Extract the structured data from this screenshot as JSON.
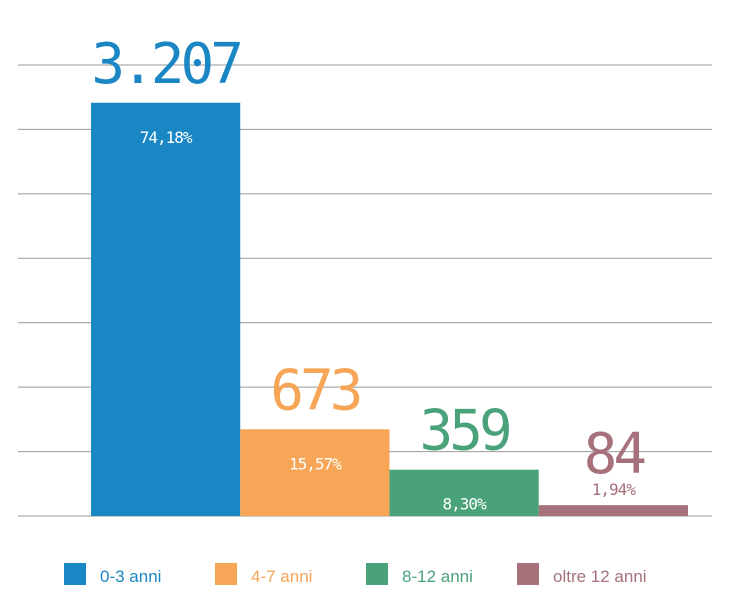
{
  "chart_data": {
    "type": "bar",
    "categories": [
      "0-3 anni",
      "4-7 anni",
      "8-12 anni",
      "oltre 12 anni"
    ],
    "values": [
      3207,
      673,
      359,
      84
    ],
    "value_labels": [
      "3.207",
      "673",
      "359",
      "84"
    ],
    "share_labels": [
      "74,18%",
      "15,57%",
      "8,30%",
      "1,94%"
    ],
    "colors": [
      "#1a87c4",
      "#f6a656",
      "#4aa27a",
      "#a6717a"
    ],
    "ylim": [
      0,
      3500
    ],
    "yticks": [
      0,
      500,
      1000,
      1500,
      2000,
      2500,
      3000,
      3500
    ],
    "grid": true
  }
}
